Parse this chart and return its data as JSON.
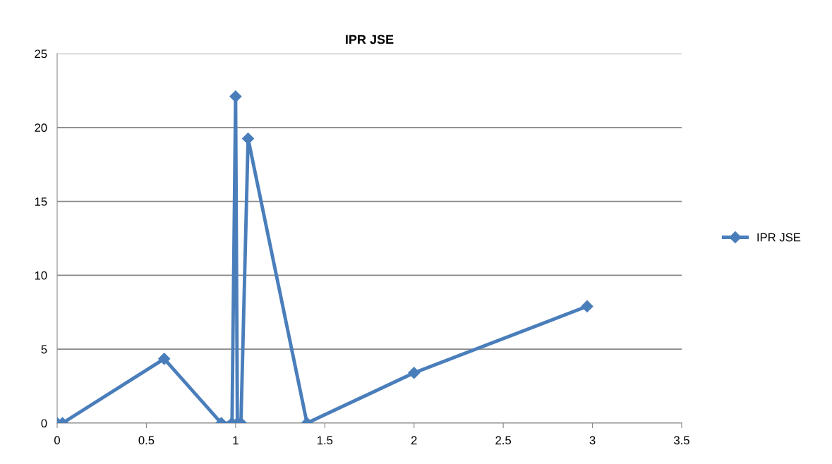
{
  "chart_data": {
    "type": "line",
    "title": "IPR JSE",
    "series": [
      {
        "name": "IPR JSE",
        "color": "#4a7ebb",
        "x": [
          0,
          0.03,
          0.6,
          0.92,
          0.98,
          1.0,
          1.01,
          1.03,
          1.07,
          1.4,
          2,
          2.97
        ],
        "values": [
          0,
          0,
          4.35,
          0,
          0,
          22.1,
          0,
          0,
          19.25,
          0,
          3.4,
          7.9
        ]
      }
    ],
    "xlim": [
      0,
      3.5
    ],
    "xticks": [
      0,
      0.5,
      1,
      1.5,
      2,
      2.5,
      3,
      3.5
    ],
    "ylim": [
      0,
      25
    ],
    "yticks": [
      0,
      5,
      10,
      15,
      20,
      25
    ],
    "grid": "y",
    "legend": "right",
    "marker": "diamond",
    "line_style": "solid"
  }
}
